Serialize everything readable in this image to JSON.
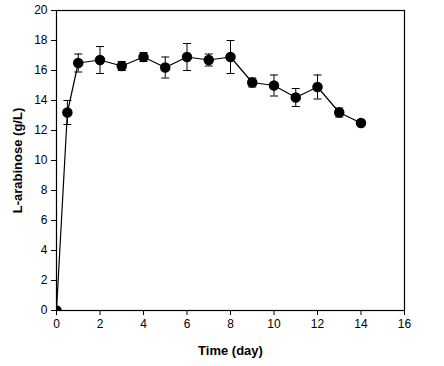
{
  "chart_data": {
    "type": "line",
    "x_label": "Time (day)",
    "y_label": "L-arabinose (g/L)",
    "xlim": [
      0,
      16
    ],
    "xticks": [
      0,
      2,
      4,
      6,
      8,
      10,
      12,
      14,
      16
    ],
    "ylim": [
      0,
      20
    ],
    "yticks": [
      0,
      2,
      4,
      6,
      8,
      10,
      12,
      14,
      16,
      18,
      20
    ],
    "grid": false,
    "x": [
      0,
      0.5,
      1,
      2,
      3,
      4,
      5,
      6,
      7,
      8,
      9,
      10,
      11,
      12,
      13,
      14
    ],
    "series": [
      {
        "color": "#000000",
        "marker": "circle",
        "line_style": "solid",
        "values": [
          0,
          13.2,
          16.5,
          16.7,
          16.3,
          16.9,
          16.2,
          16.9,
          16.7,
          16.9,
          15.2,
          15.0,
          14.2,
          14.9,
          13.2,
          12.5
        ],
        "errors": [
          0,
          0.8,
          0.6,
          0.9,
          0.3,
          0.3,
          0.7,
          0.9,
          0.4,
          1.1,
          0.3,
          0.7,
          0.6,
          0.8,
          0.3,
          0.2
        ]
      }
    ]
  }
}
